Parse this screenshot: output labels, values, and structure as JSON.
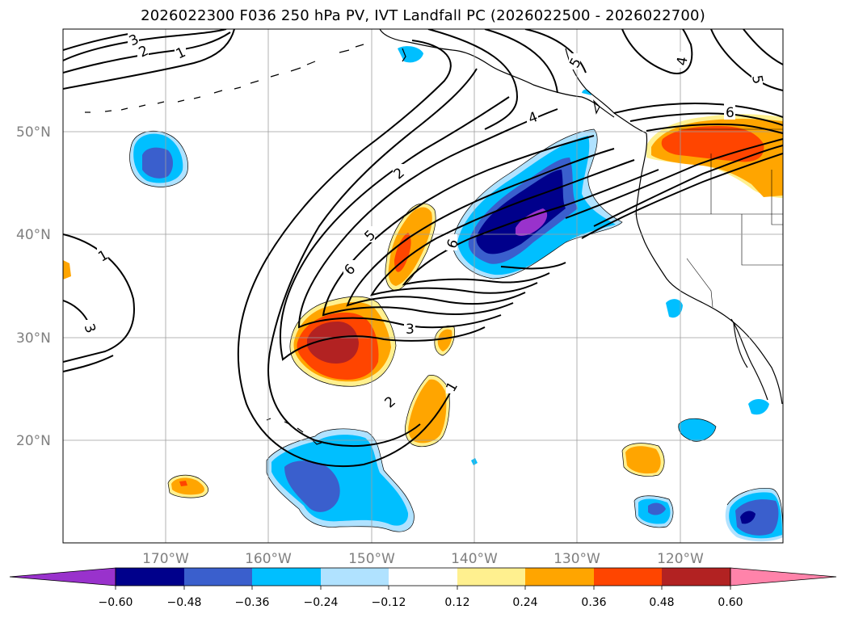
{
  "title": "2026022300 F036 250 hPa PV, IVT Landfall PC (2026022500 - 2026022700)",
  "map": {
    "projection": "PlateCarree",
    "extent_lon": [
      -180,
      -110
    ],
    "extent_lat": [
      10,
      60
    ],
    "lat_ticks": [
      {
        "value": 20,
        "label": "20°N"
      },
      {
        "value": 30,
        "label": "30°N"
      },
      {
        "value": 40,
        "label": "40°N"
      },
      {
        "value": 50,
        "label": "50°N"
      }
    ],
    "lon_ticks": [
      {
        "value": -170,
        "label": "170°W"
      },
      {
        "value": -160,
        "label": "160°W"
      },
      {
        "value": -150,
        "label": "150°W"
      },
      {
        "value": -140,
        "label": "140°W"
      },
      {
        "value": -130,
        "label": "130°W"
      },
      {
        "value": -120,
        "label": "120°W"
      }
    ],
    "gridlines": true,
    "contour_labels": [
      "1",
      "2",
      "3",
      "4",
      "5",
      "6",
      "1",
      "2",
      "3",
      "4",
      "5",
      "6",
      "1",
      "2",
      "3",
      "5",
      "6"
    ]
  },
  "colorbar": {
    "orientation": "horizontal",
    "extend": "both",
    "ticks": [
      "−0.60",
      "−0.48",
      "−0.36",
      "−0.24",
      "−0.12",
      "0.12",
      "0.24",
      "0.36",
      "0.48",
      "0.60"
    ],
    "colors": [
      "#9932cc",
      "#00008b",
      "#3a5fcd",
      "#00bfff",
      "#b0e2ff",
      "#ffffff",
      "#fff08f",
      "#ffa500",
      "#ff4500",
      "#b22222",
      "#ff83aa"
    ]
  }
}
